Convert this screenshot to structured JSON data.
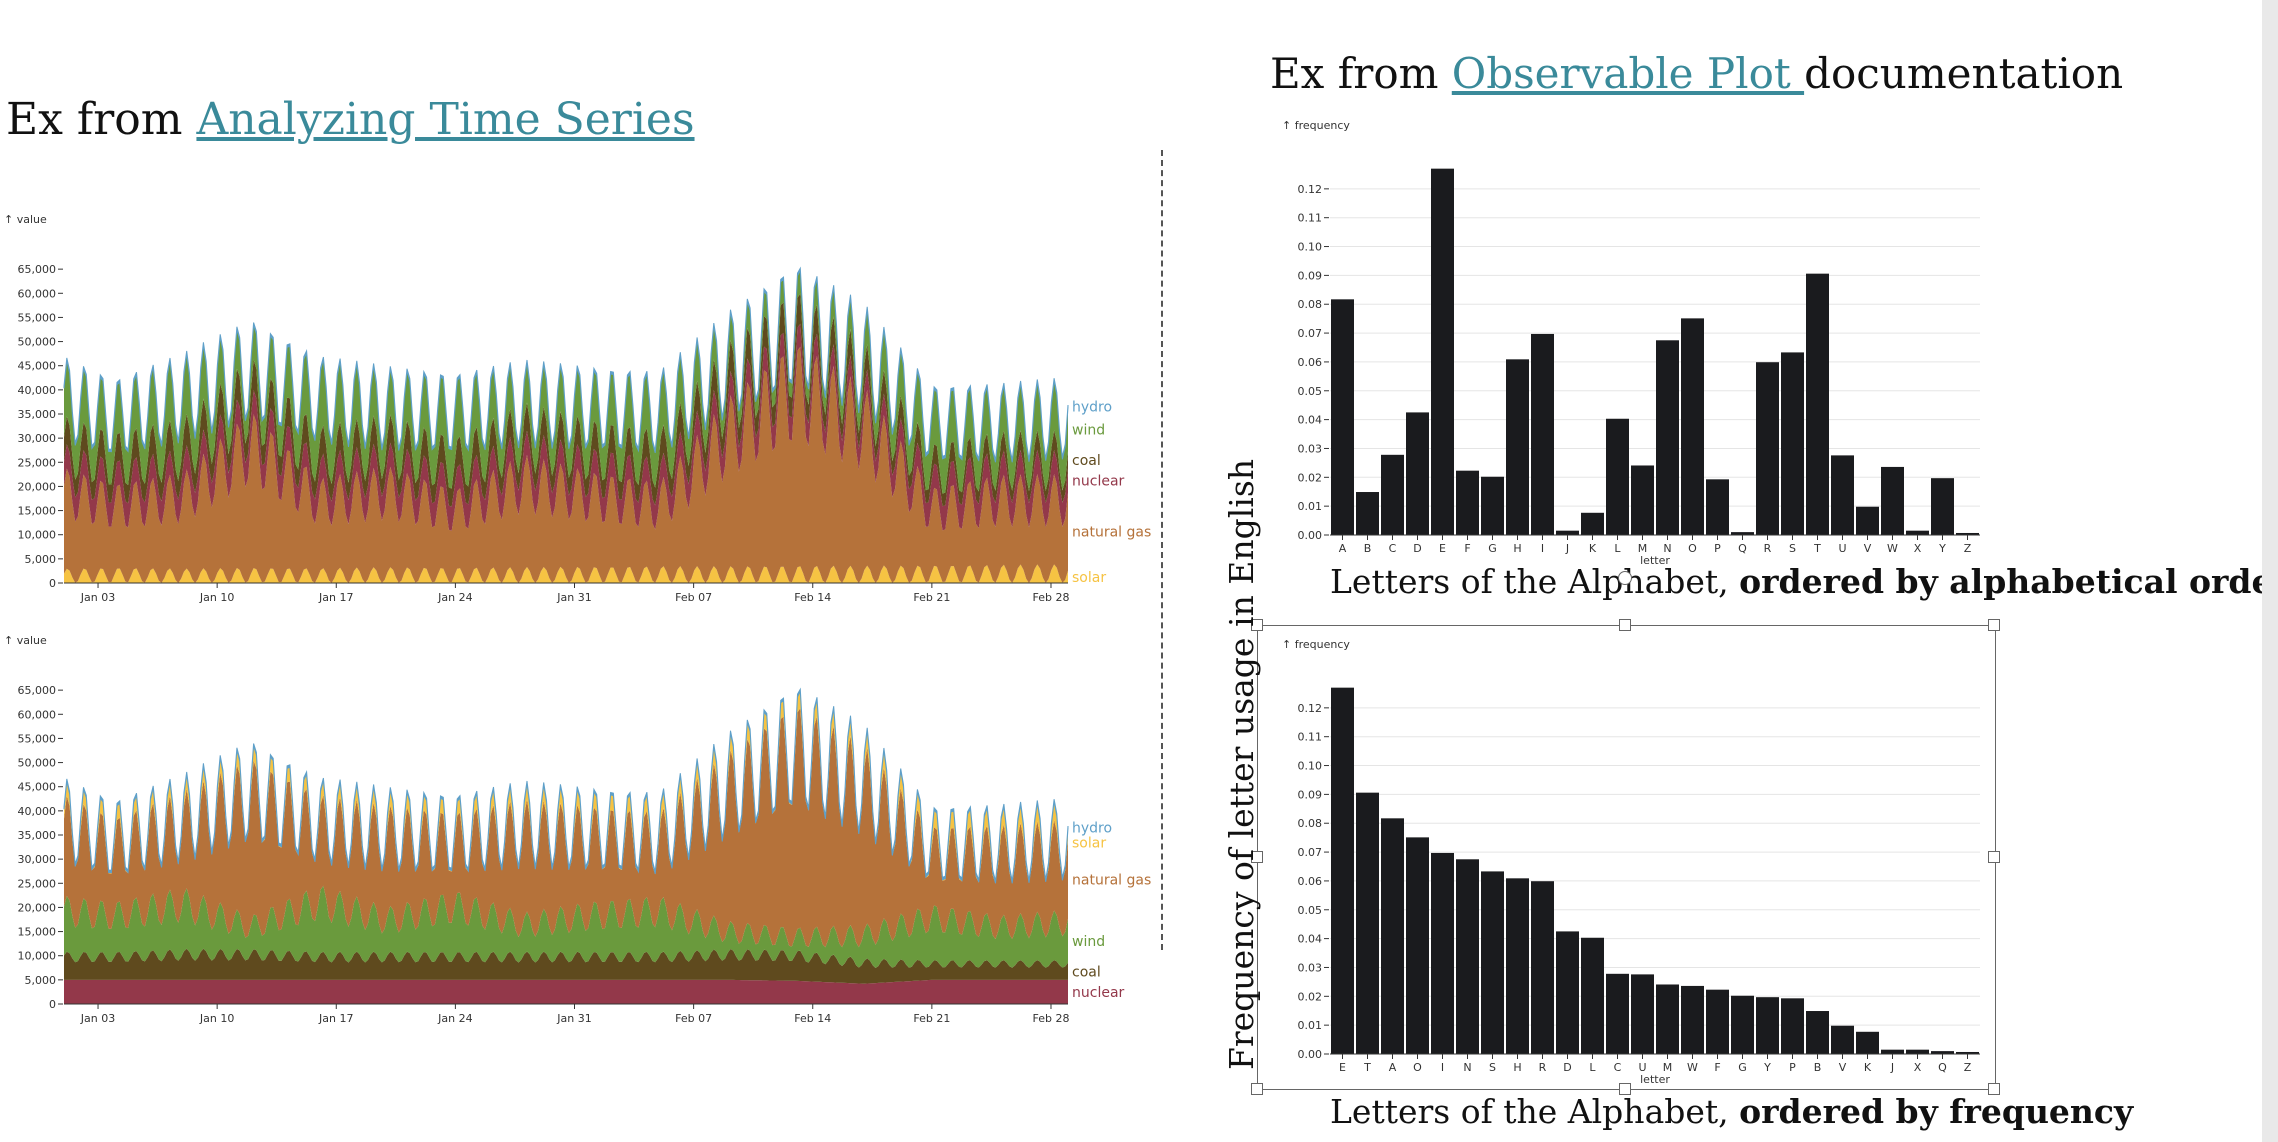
{
  "headings": {
    "left": {
      "prefix": "Ex from ",
      "link": "Analyzing Time Series"
    },
    "right": {
      "prefix": "Ex from ",
      "link": "Observable Plot ",
      "suffix": "documentation"
    }
  },
  "captions": {
    "top": {
      "normal": "Letters of the Alphabet, ",
      "bold": "ordered by alphabetical order"
    },
    "bottom": {
      "normal": "Letters of the Alphabet, ",
      "bold": "ordered by frequency"
    },
    "yaxis": "Frequency of letter usage in English"
  },
  "colors": {
    "solar": "#f6c343",
    "natural gas": "#b5723a",
    "nuclear": "#93384a",
    "coal": "#5f4a1e",
    "wind": "#6a9a3d",
    "hydro": "#5fa0c9",
    "bar": "#1a1b1e"
  },
  "chart_data": [
    {
      "type": "area",
      "ylabel": "↑ value",
      "y_ticks": [
        0,
        5000,
        10000,
        15000,
        20000,
        25000,
        30000,
        35000,
        40000,
        45000,
        50000,
        55000,
        60000,
        65000
      ],
      "ylim": [
        0,
        70000
      ],
      "x_ticks": [
        "Jan 03",
        "Jan 10",
        "Jan 17",
        "Jan 24",
        "Jan 31",
        "Feb 07",
        "Feb 14",
        "Feb 21",
        "Feb 28"
      ],
      "x_range_days": [
        1,
        60
      ],
      "stack_order": [
        "solar",
        "natural gas",
        "nuclear",
        "coal",
        "wind",
        "hydro"
      ],
      "series_labels": [
        "hydro",
        "wind",
        "coal",
        "nuclear",
        "natural gas",
        "solar"
      ],
      "series": [
        {
          "name": "solar",
          "x": [
            1,
            4,
            8,
            12,
            16,
            20,
            24,
            28,
            32,
            36,
            40,
            44,
            48,
            52,
            56,
            60
          ],
          "values": [
            3000,
            3200,
            3000,
            3200,
            3100,
            3300,
            3200,
            3300,
            3400,
            3500,
            3500,
            3600,
            3600,
            3700,
            3800,
            3900
          ]
        },
        {
          "name": "natural gas",
          "x": [
            1,
            4,
            8,
            12,
            16,
            20,
            24,
            28,
            32,
            36,
            40,
            44,
            48,
            52,
            56,
            60
          ],
          "values": [
            18000,
            15000,
            17000,
            28000,
            16000,
            18000,
            14000,
            20000,
            17000,
            15000,
            30000,
            40000,
            32000,
            14000,
            16000,
            16000
          ]
        },
        {
          "name": "nuclear",
          "x": [
            1,
            4,
            8,
            12,
            16,
            20,
            24,
            28,
            32,
            36,
            40,
            44,
            48,
            52,
            56,
            60
          ],
          "values": [
            5000,
            5000,
            5000,
            5000,
            5000,
            5000,
            5000,
            5000,
            5000,
            5000,
            5000,
            4800,
            4200,
            5000,
            5000,
            5000
          ]
        },
        {
          "name": "coal",
          "x": [
            1,
            4,
            8,
            12,
            16,
            20,
            24,
            28,
            32,
            36,
            40,
            44,
            48,
            52,
            56,
            60
          ],
          "values": [
            5000,
            5000,
            5500,
            5500,
            5000,
            5000,
            5000,
            5000,
            5000,
            5000,
            5500,
            5500,
            4500,
            3500,
            3500,
            3500
          ]
        },
        {
          "name": "wind",
          "x": [
            1,
            4,
            8,
            12,
            16,
            20,
            24,
            28,
            32,
            36,
            40,
            44,
            48,
            52,
            56,
            60
          ],
          "values": [
            10000,
            9000,
            11000,
            6000,
            12000,
            8000,
            11000,
            7000,
            9000,
            10000,
            5000,
            4000,
            6000,
            10000,
            8000,
            9000
          ]
        },
        {
          "name": "hydro",
          "x": [
            1,
            4,
            8,
            12,
            16,
            20,
            24,
            28,
            32,
            36,
            40,
            44,
            48,
            52,
            56,
            60
          ],
          "values": [
            500,
            500,
            500,
            500,
            500,
            500,
            500,
            500,
            500,
            500,
            500,
            500,
            500,
            500,
            500,
            500
          ]
        }
      ]
    },
    {
      "type": "area",
      "ylabel": "↑ value",
      "y_ticks": [
        0,
        5000,
        10000,
        15000,
        20000,
        25000,
        30000,
        35000,
        40000,
        45000,
        50000,
        55000,
        60000,
        65000
      ],
      "ylim": [
        0,
        70000
      ],
      "x_ticks": [
        "Jan 03",
        "Jan 10",
        "Jan 17",
        "Jan 24",
        "Jan 31",
        "Feb 07",
        "Feb 14",
        "Feb 21",
        "Feb 28"
      ],
      "x_range_days": [
        1,
        60
      ],
      "stack_order": [
        "nuclear",
        "coal",
        "wind",
        "natural gas",
        "solar",
        "hydro"
      ],
      "series_labels": [
        "hydro",
        "solar",
        "natural gas",
        "wind",
        "coal",
        "nuclear"
      ],
      "series": [
        {
          "name": "nuclear",
          "x": [
            1,
            4,
            8,
            12,
            16,
            20,
            24,
            28,
            32,
            36,
            40,
            44,
            48,
            52,
            56,
            60
          ],
          "values": [
            5000,
            5000,
            5000,
            5000,
            5000,
            5000,
            5000,
            5000,
            5000,
            5000,
            5000,
            4800,
            4200,
            5000,
            5000,
            5000
          ]
        },
        {
          "name": "coal",
          "x": [
            1,
            4,
            8,
            12,
            16,
            20,
            24,
            28,
            32,
            36,
            40,
            44,
            48,
            52,
            56,
            60
          ],
          "values": [
            5000,
            5000,
            5500,
            5500,
            5000,
            5000,
            5000,
            5000,
            5000,
            5000,
            5500,
            5500,
            4500,
            3500,
            3500,
            3500
          ]
        },
        {
          "name": "wind",
          "x": [
            1,
            4,
            8,
            12,
            16,
            20,
            24,
            28,
            32,
            36,
            40,
            44,
            48,
            52,
            56,
            60
          ],
          "values": [
            10000,
            9000,
            11000,
            6000,
            12000,
            8000,
            11000,
            7000,
            9000,
            10000,
            5000,
            4000,
            6000,
            10000,
            8000,
            9000
          ]
        },
        {
          "name": "natural gas",
          "x": [
            1,
            4,
            8,
            12,
            16,
            20,
            24,
            28,
            32,
            36,
            40,
            44,
            48,
            52,
            56,
            60
          ],
          "values": [
            18000,
            15000,
            17000,
            28000,
            16000,
            18000,
            14000,
            20000,
            17000,
            15000,
            30000,
            40000,
            32000,
            14000,
            16000,
            16000
          ]
        },
        {
          "name": "solar",
          "x": [
            1,
            4,
            8,
            12,
            16,
            20,
            24,
            28,
            32,
            36,
            40,
            44,
            48,
            52,
            56,
            60
          ],
          "values": [
            3000,
            3200,
            3000,
            3200,
            3100,
            3300,
            3200,
            3300,
            3400,
            3500,
            3500,
            3600,
            3600,
            3700,
            3800,
            3900
          ]
        },
        {
          "name": "hydro",
          "x": [
            1,
            4,
            8,
            12,
            16,
            20,
            24,
            28,
            32,
            36,
            40,
            44,
            48,
            52,
            56,
            60
          ],
          "values": [
            500,
            500,
            500,
            500,
            500,
            500,
            500,
            500,
            500,
            500,
            500,
            500,
            500,
            500,
            500,
            500
          ]
        }
      ]
    },
    {
      "type": "bar",
      "ylabel": "↑ frequency",
      "xlabel": "letter",
      "ylim": [
        0,
        0.13
      ],
      "y_ticks": [
        "0.00",
        "0.01",
        "0.02",
        "0.03",
        "0.04",
        "0.05",
        "0.06",
        "0.07",
        "0.08",
        "0.09",
        "0.10",
        "0.11",
        "0.12"
      ],
      "categories": [
        "A",
        "B",
        "C",
        "D",
        "E",
        "F",
        "G",
        "H",
        "I",
        "J",
        "K",
        "L",
        "M",
        "N",
        "O",
        "P",
        "Q",
        "R",
        "S",
        "T",
        "U",
        "V",
        "W",
        "X",
        "Y",
        "Z"
      ],
      "values": [
        0.0817,
        0.0149,
        0.0278,
        0.0425,
        0.127,
        0.0223,
        0.0202,
        0.0609,
        0.0697,
        0.0015,
        0.0077,
        0.0403,
        0.0241,
        0.0675,
        0.0751,
        0.0193,
        0.001,
        0.0599,
        0.0633,
        0.0906,
        0.0276,
        0.0098,
        0.0236,
        0.0015,
        0.0197,
        0.0007
      ]
    },
    {
      "type": "bar",
      "ylabel": "↑ frequency",
      "xlabel": "letter",
      "ylim": [
        0,
        0.13
      ],
      "y_ticks": [
        "0.00",
        "0.01",
        "0.02",
        "0.03",
        "0.04",
        "0.05",
        "0.06",
        "0.07",
        "0.08",
        "0.09",
        "0.10",
        "0.11",
        "0.12"
      ],
      "categories": [
        "E",
        "T",
        "A",
        "O",
        "I",
        "N",
        "S",
        "H",
        "R",
        "D",
        "L",
        "C",
        "U",
        "M",
        "W",
        "F",
        "G",
        "Y",
        "P",
        "B",
        "V",
        "K",
        "J",
        "X",
        "Q",
        "Z"
      ],
      "values": [
        0.127,
        0.0906,
        0.0817,
        0.0751,
        0.0697,
        0.0675,
        0.0633,
        0.0609,
        0.0599,
        0.0425,
        0.0403,
        0.0278,
        0.0276,
        0.0241,
        0.0236,
        0.0223,
        0.0202,
        0.0197,
        0.0193,
        0.0149,
        0.0098,
        0.0077,
        0.0015,
        0.0015,
        0.001,
        0.0007
      ]
    }
  ]
}
